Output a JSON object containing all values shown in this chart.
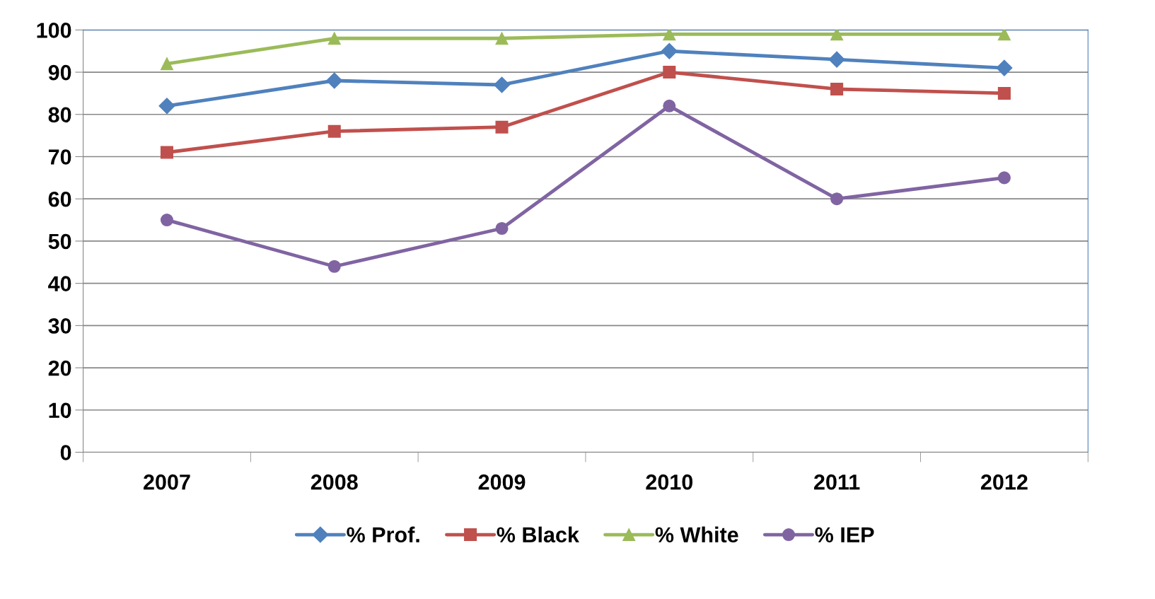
{
  "chart_data": {
    "type": "line",
    "categories": [
      "2007",
      "2008",
      "2009",
      "2010",
      "2011",
      "2012"
    ],
    "series": [
      {
        "name": "% Prof.",
        "color": "#4f81bd",
        "marker": "diamond",
        "values": [
          82,
          88,
          87,
          95,
          93,
          91
        ]
      },
      {
        "name": "% Black",
        "color": "#c0504d",
        "marker": "square",
        "values": [
          71,
          76,
          77,
          90,
          86,
          85
        ]
      },
      {
        "name": "% White",
        "color": "#9bbb59",
        "marker": "triangle",
        "values": [
          92,
          98,
          98,
          99,
          99,
          99
        ]
      },
      {
        "name": "% IEP",
        "color": "#8064a2",
        "marker": "circle",
        "values": [
          55,
          44,
          53,
          82,
          60,
          65
        ]
      }
    ],
    "ylim": [
      0,
      100
    ],
    "yticks": [
      0,
      10,
      20,
      30,
      40,
      50,
      60,
      70,
      80,
      90,
      100
    ],
    "grid": "y",
    "legend": "bottom",
    "line_style": "solid"
  }
}
